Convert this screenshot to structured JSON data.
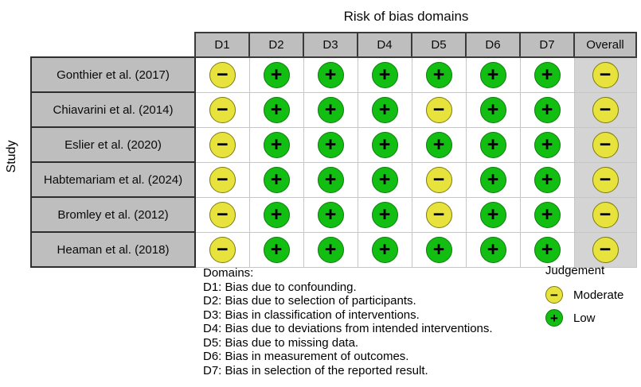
{
  "title": "Risk of bias domains",
  "y_axis_label": "Study",
  "chart_data": {
    "type": "table",
    "title": "Risk of bias domains",
    "ylabel": "Study",
    "columns": [
      "D1",
      "D2",
      "D3",
      "D4",
      "D5",
      "D6",
      "D7",
      "Overall"
    ],
    "studies": [
      {
        "label": "Gonthier et al. (2017)",
        "judgements": [
          "moderate",
          "low",
          "low",
          "low",
          "low",
          "low",
          "low",
          "moderate"
        ]
      },
      {
        "label": "Chiavarini et al. (2014)",
        "judgements": [
          "moderate",
          "low",
          "low",
          "low",
          "moderate",
          "low",
          "low",
          "moderate"
        ]
      },
      {
        "label": "Eslier et al. (2020)",
        "judgements": [
          "moderate",
          "low",
          "low",
          "low",
          "low",
          "low",
          "low",
          "moderate"
        ]
      },
      {
        "label": "Habtemariam et al. (2024)",
        "judgements": [
          "moderate",
          "low",
          "low",
          "low",
          "moderate",
          "low",
          "low",
          "moderate"
        ]
      },
      {
        "label": "Bromley et al. (2012)",
        "judgements": [
          "moderate",
          "low",
          "low",
          "low",
          "moderate",
          "low",
          "low",
          "moderate"
        ]
      },
      {
        "label": "Heaman et al. (2018)",
        "judgements": [
          "moderate",
          "low",
          "low",
          "low",
          "low",
          "low",
          "low",
          "moderate"
        ]
      }
    ]
  },
  "symbols": {
    "moderate": "−",
    "low": "+"
  },
  "colors": {
    "moderate": "#e8e33c",
    "moderate_border": "#7d7a10",
    "low": "#12be12",
    "low_border": "#0b7d0b",
    "header_bg": "#bebebe",
    "overall_bg": "#d4d4d4",
    "grid_line": "#c6c6c6",
    "dark_border": "#3a3a3a"
  },
  "footnote": {
    "heading": "Domains:",
    "items": [
      "D1: Bias due to confounding.",
      "D2: Bias due to selection of participants.",
      "D3: Bias in classification of interventions.",
      "D4: Bias due to deviations from intended interventions.",
      "D5: Bias due to missing data.",
      "D6: Bias in measurement of outcomes.",
      "D7: Bias in selection of the reported result."
    ]
  },
  "legend": {
    "title": "Judgement",
    "items": [
      {
        "key": "moderate",
        "label": "Moderate"
      },
      {
        "key": "low",
        "label": "Low"
      }
    ]
  }
}
